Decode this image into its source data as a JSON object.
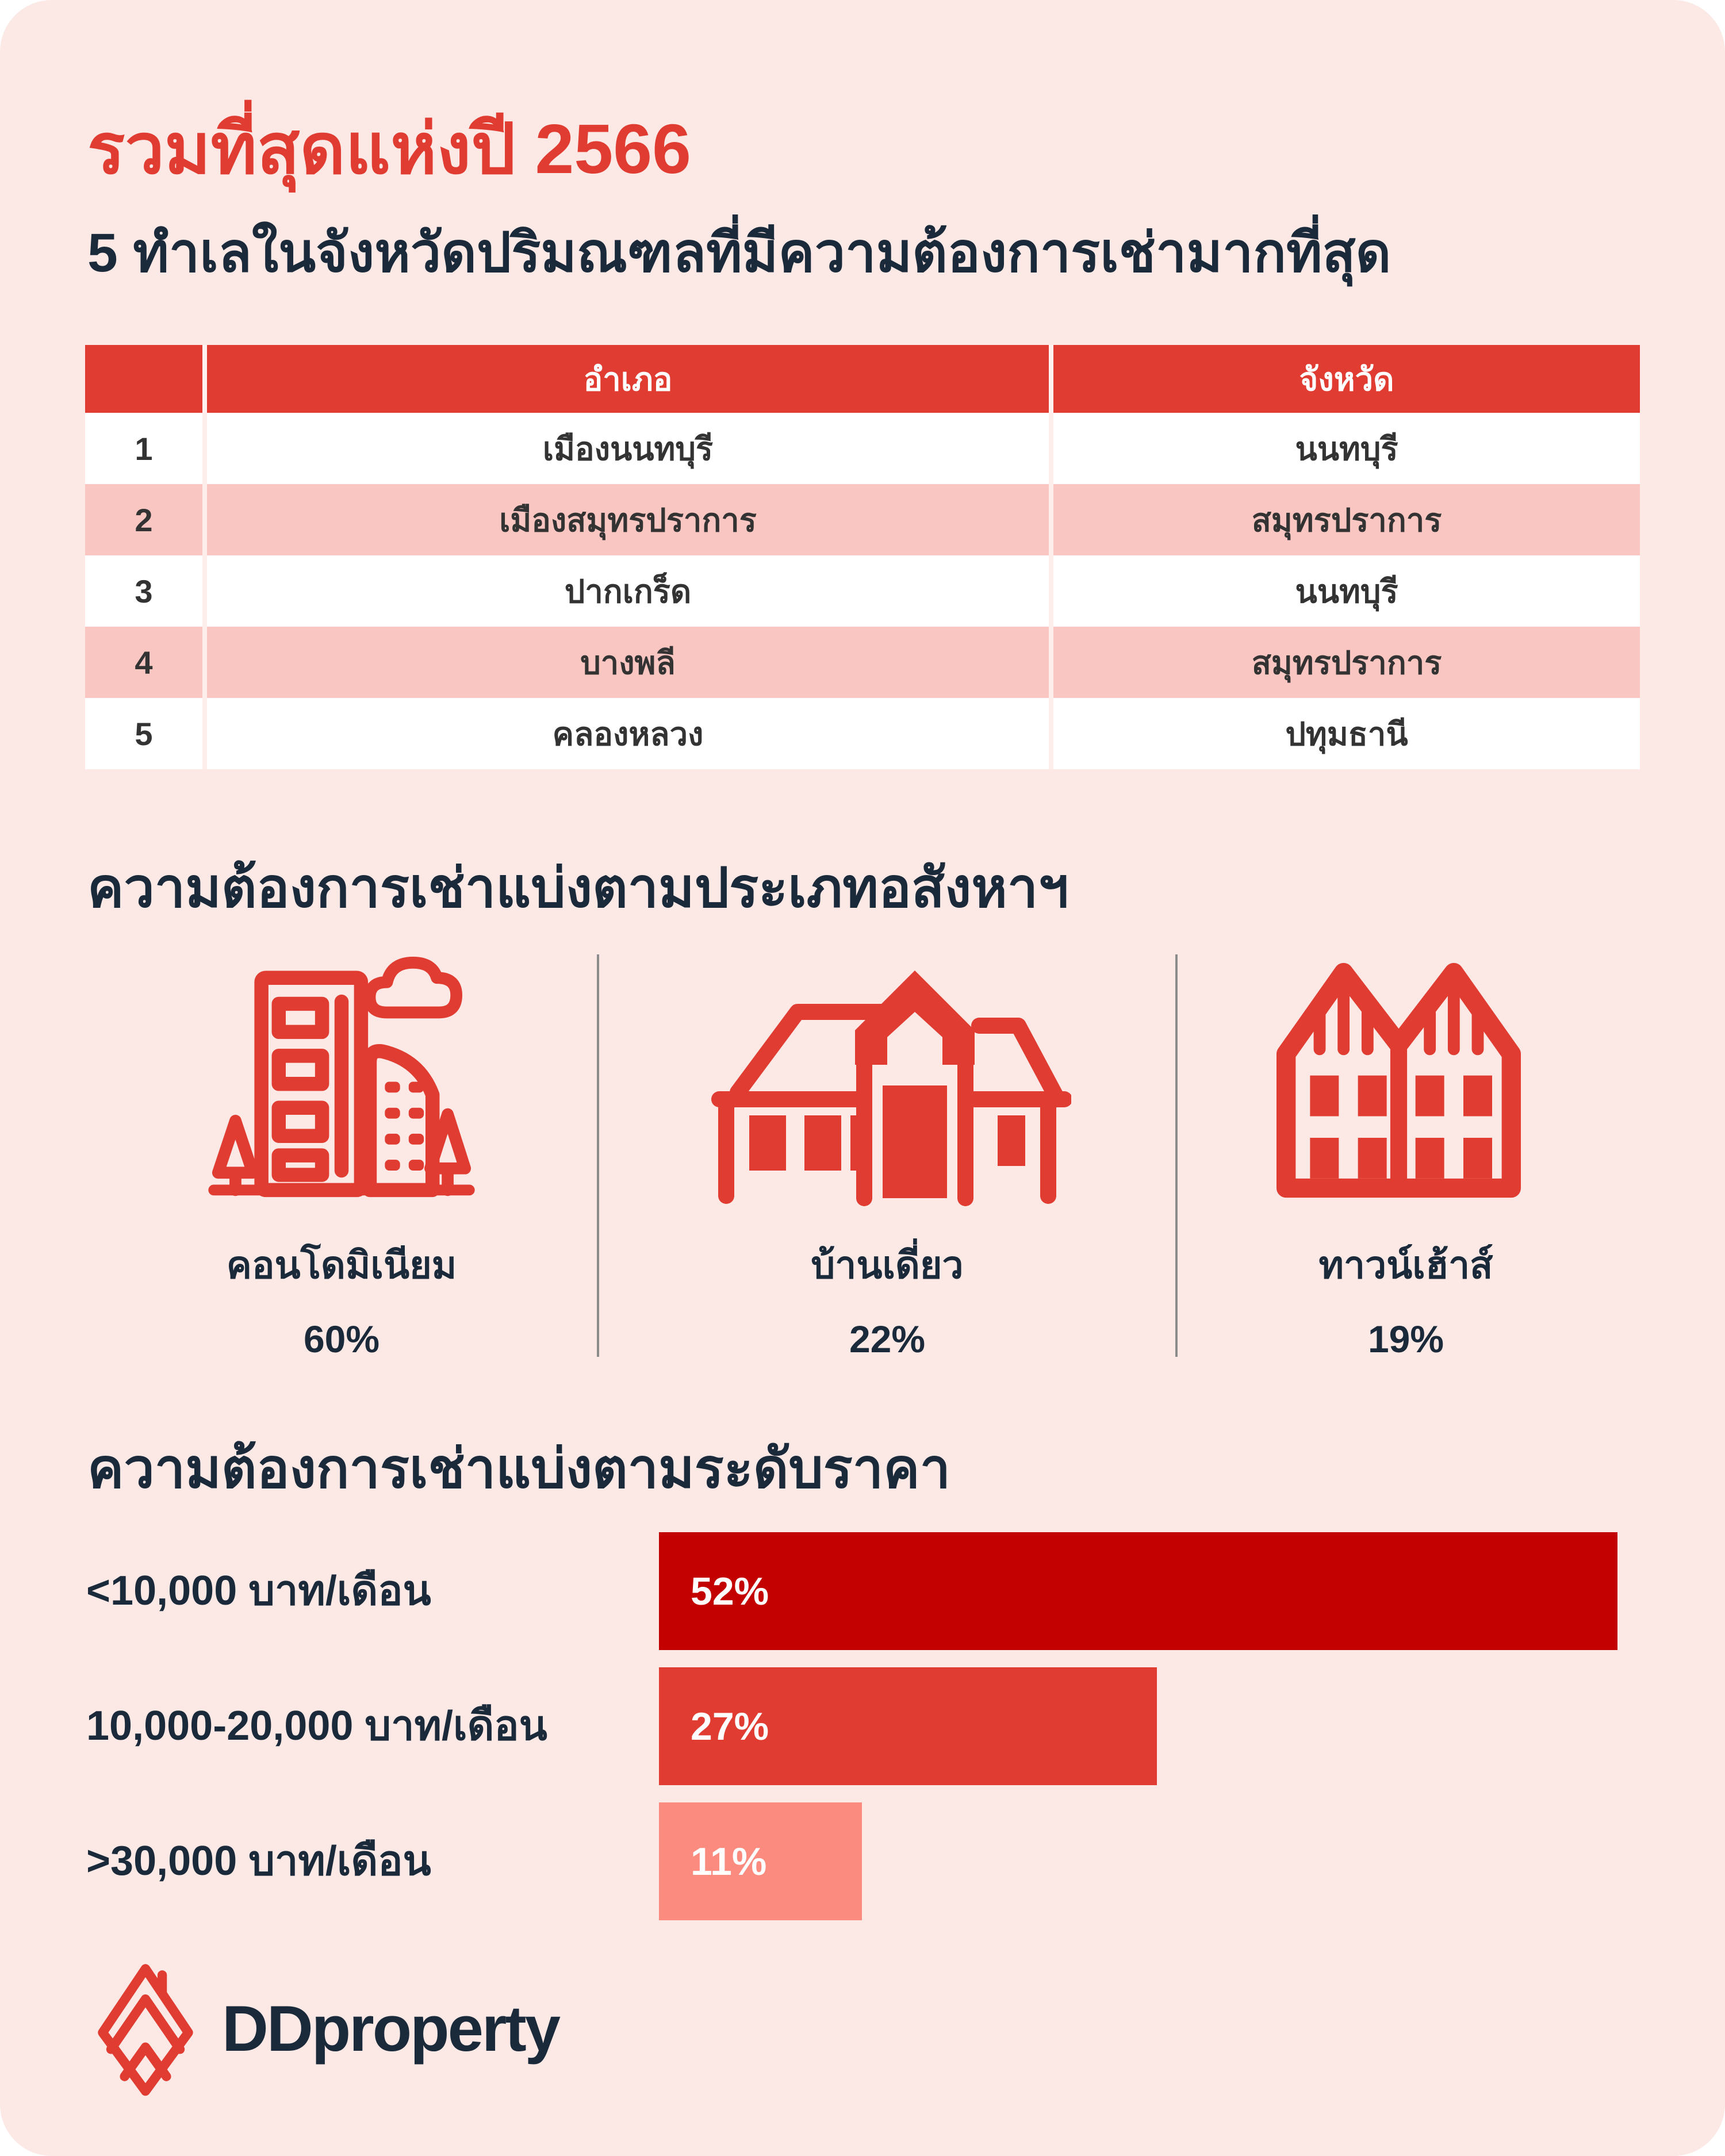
{
  "colors": {
    "accent_red": "#e03c31",
    "dark_red": "#c40101",
    "salmon": "#fb8a7f",
    "navy": "#1b2a3a",
    "card_background": "#fce9e6",
    "row_pink": "#f9c6c1"
  },
  "header": {
    "title": "รวมที่สุดแห่งปี 2566",
    "subtitle": "5 ทำเลในจังหวัดปริมณฑลที่มีความต้องการเช่ามากที่สุด"
  },
  "table": {
    "columns": [
      "",
      "อำเภอ",
      "จังหวัด"
    ],
    "rows": [
      {
        "rank": "1",
        "district": "เมืองนนทบุรี",
        "province": "นนทบุรี"
      },
      {
        "rank": "2",
        "district": "เมืองสมุทรปราการ",
        "province": "สมุทรปราการ"
      },
      {
        "rank": "3",
        "district": "ปากเกร็ด",
        "province": "นนทบุรี"
      },
      {
        "rank": "4",
        "district": "บางพลี",
        "province": "สมุทรปราการ"
      },
      {
        "rank": "5",
        "district": "คลองหลวง",
        "province": "ปทุมธานี"
      }
    ]
  },
  "property_type_section": {
    "heading": "ความต้องการเช่าแบ่งตามประเภทอสังหาฯ",
    "items": [
      {
        "label": "คอนโดมิเนียม",
        "value": "60%",
        "icon": "condominium-icon"
      },
      {
        "label": "บ้านเดี่ยว",
        "value": "22%",
        "icon": "detached-house-icon"
      },
      {
        "label": "ทาวน์เฮ้าส์",
        "value": "19%",
        "icon": "townhouse-icon"
      }
    ]
  },
  "price_section": {
    "heading": "ความต้องการเช่าแบ่งตามระดับราคา",
    "bars": [
      {
        "label": "<10,000 บาท/เดือน",
        "value": "52%",
        "pct": 52,
        "color": "#c40101"
      },
      {
        "label": "10,000-20,000 บาท/เดือน",
        "value": "27%",
        "pct": 27,
        "color": "#e03c31"
      },
      {
        "label": ">30,000 บาท/เดือน",
        "value": "11%",
        "pct": 11,
        "color": "#fb8a7f"
      }
    ]
  },
  "footer": {
    "brand": "DDproperty"
  },
  "chart_data": [
    {
      "type": "bar",
      "title": "ความต้องการเช่าแบ่งตามประเภทอสังหาฯ",
      "categories": [
        "คอนโดมิเนียม",
        "บ้านเดี่ยว",
        "ทาวน์เฮ้าส์"
      ],
      "values": [
        60,
        22,
        19
      ],
      "unit": "%",
      "legend": "none",
      "grid": false
    },
    {
      "type": "bar",
      "orientation": "horizontal",
      "title": "ความต้องการเช่าแบ่งตามระดับราคา",
      "categories": [
        "<10,000 บาท/เดือน",
        "10,000-20,000 บาท/เดือน",
        ">30,000 บาท/เดือน"
      ],
      "values": [
        52,
        27,
        11
      ],
      "unit": "%",
      "xlim": [
        0,
        52
      ],
      "bar_colors": [
        "#c40101",
        "#e03c31",
        "#fb8a7f"
      ],
      "data_labels": "inside-start",
      "legend": "none",
      "grid": false
    }
  ]
}
